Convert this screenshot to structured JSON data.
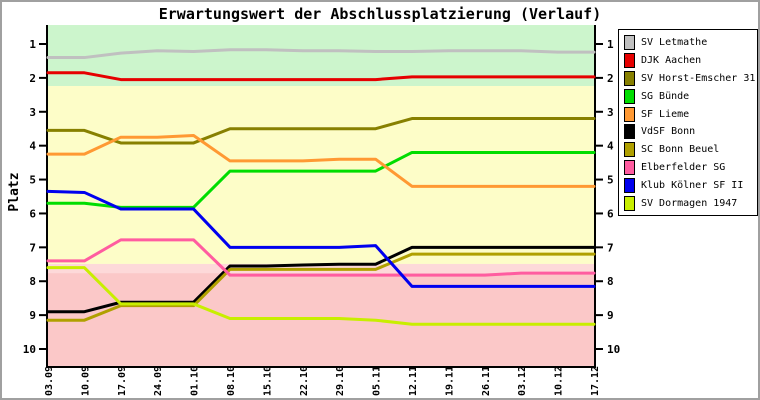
{
  "title": "Erwartungswert der Abschlussplatzierung (Verlauf)",
  "chart_data": {
    "type": "line",
    "title": "Erwartungswert der Abschlussplatzierung (Verlauf)",
    "xlabel": "",
    "ylabel": "Platz",
    "y_axis_inverted": true,
    "ylim": [
      0.44,
      10.5
    ],
    "y_ticks": [
      1,
      2,
      3,
      4,
      5,
      6,
      7,
      8,
      9,
      10
    ],
    "grid": false,
    "legend_position": "right",
    "x_tick_labels": [
      "03.09",
      "10.09",
      "17.09",
      "24.09",
      "01.10",
      "08.10",
      "15.10",
      "22.10",
      "29.10",
      "05.11",
      "12.11",
      "19.11",
      "26.11",
      "03.12",
      "10.12",
      "17.12"
    ],
    "zones": [
      {
        "name": "top-zone-green",
        "from": 0.44,
        "to": 2.24,
        "color": "#ccf5cc"
      },
      {
        "name": "mid-zone-yellow",
        "from": 2.24,
        "to": 7.49,
        "color": "#fdfdc8"
      },
      {
        "name": "relegation-border-light",
        "from": 7.49,
        "to": 7.76,
        "color": "#fdd9d9"
      },
      {
        "name": "bottom-zone-pink",
        "from": 7.76,
        "to": 10.5,
        "color": "#fbc8c8"
      }
    ],
    "series": [
      {
        "name": "SV Letmathe",
        "color": "#c0c0c0",
        "values": [
          1.4,
          1.4,
          1.27,
          1.2,
          1.22,
          1.17,
          1.17,
          1.2,
          1.2,
          1.22,
          1.22,
          1.2,
          1.2,
          1.2,
          1.24,
          1.24
        ]
      },
      {
        "name": "DJK Aachen",
        "color": "#e60000",
        "values": [
          1.85,
          1.85,
          2.05,
          2.05,
          2.05,
          2.05,
          2.05,
          2.05,
          2.05,
          2.05,
          1.97,
          1.97,
          1.97,
          1.97,
          1.97,
          1.97
        ]
      },
      {
        "name": "SV Horst-Emscher 31",
        "color": "#878000",
        "values": [
          3.55,
          3.55,
          3.92,
          3.92,
          3.92,
          3.5,
          3.5,
          3.5,
          3.5,
          3.5,
          3.2,
          3.2,
          3.2,
          3.2,
          3.2,
          3.2
        ]
      },
      {
        "name": "SG Bünde",
        "color": "#00dd00",
        "values": [
          5.7,
          5.7,
          5.82,
          5.82,
          5.82,
          4.75,
          4.75,
          4.75,
          4.75,
          4.75,
          4.2,
          4.2,
          4.2,
          4.2,
          4.2,
          4.2
        ]
      },
      {
        "name": "SF Lieme",
        "color": "#ff9933",
        "values": [
          4.25,
          4.25,
          3.75,
          3.75,
          3.7,
          4.45,
          4.45,
          4.45,
          4.4,
          4.4,
          5.2,
          5.2,
          5.2,
          5.2,
          5.2,
          5.2
        ]
      },
      {
        "name": "VdSF Bonn",
        "color": "#000000",
        "values": [
          8.9,
          8.9,
          8.62,
          8.62,
          8.62,
          7.55,
          7.55,
          7.52,
          7.5,
          7.5,
          7.0,
          7.0,
          7.0,
          7.0,
          7.0,
          7.0
        ]
      },
      {
        "name": "SC Bonn Beuel",
        "color": "#b0a000",
        "values": [
          9.15,
          9.15,
          8.72,
          8.72,
          8.72,
          7.65,
          7.65,
          7.65,
          7.65,
          7.65,
          7.2,
          7.2,
          7.2,
          7.2,
          7.2,
          7.2
        ]
      },
      {
        "name": "Elberfelder SG",
        "color": "#ff5ca0",
        "values": [
          7.4,
          7.4,
          6.78,
          6.78,
          6.78,
          7.82,
          7.82,
          7.82,
          7.82,
          7.82,
          7.82,
          7.82,
          7.82,
          7.76,
          7.76,
          7.76
        ]
      },
      {
        "name": "Klub Kölner SF II",
        "color": "#0000ee",
        "values": [
          5.35,
          5.38,
          5.87,
          5.87,
          5.87,
          7.0,
          7.0,
          7.0,
          7.0,
          6.95,
          8.15,
          8.15,
          8.15,
          8.15,
          8.15,
          8.15
        ]
      },
      {
        "name": "SV Dormagen 1947",
        "color": "#c8ee00",
        "values": [
          7.6,
          7.6,
          8.67,
          8.67,
          8.67,
          9.1,
          9.1,
          9.1,
          9.1,
          9.15,
          9.27,
          9.27,
          9.27,
          9.27,
          9.27,
          9.27
        ]
      }
    ]
  }
}
